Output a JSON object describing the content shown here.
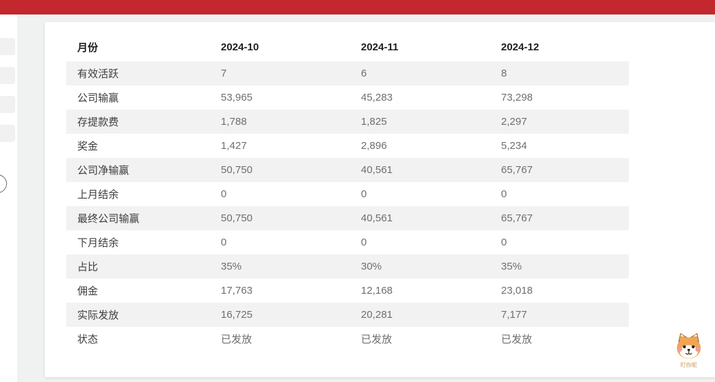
{
  "topbar": {
    "accent_color": "#c2282e"
  },
  "report_table": {
    "columns": [
      "月份",
      "2024-10",
      "2024-11",
      "2024-12"
    ],
    "rows": [
      {
        "label": "有效活跃",
        "values": [
          "7",
          "6",
          "8"
        ]
      },
      {
        "label": "公司输赢",
        "values": [
          "53,965",
          "45,283",
          "73,298"
        ]
      },
      {
        "label": "存提款费",
        "values": [
          "1,788",
          "1,825",
          "2,297"
        ]
      },
      {
        "label": "奖金",
        "values": [
          "1,427",
          "2,896",
          "5,234"
        ]
      },
      {
        "label": "公司净输赢",
        "values": [
          "50,750",
          "40,561",
          "65,767"
        ]
      },
      {
        "label": "上月结余",
        "values": [
          "0",
          "0",
          "0"
        ]
      },
      {
        "label": "最终公司输赢",
        "values": [
          "50,750",
          "40,561",
          "65,767"
        ]
      },
      {
        "label": "下月结余",
        "values": [
          "0",
          "0",
          "0"
        ]
      },
      {
        "label": "占比",
        "values": [
          "35%",
          "30%",
          "35%"
        ]
      },
      {
        "label": "佣金",
        "values": [
          "17,763",
          "12,168",
          "23,018"
        ]
      },
      {
        "label": "实际发放",
        "values": [
          "16,725",
          "20,281",
          "7,177"
        ]
      },
      {
        "label": "状态",
        "values": [
          "已发放",
          "已发放",
          "已发放"
        ]
      }
    ]
  },
  "mascot": {
    "caption": "盯你呢"
  }
}
